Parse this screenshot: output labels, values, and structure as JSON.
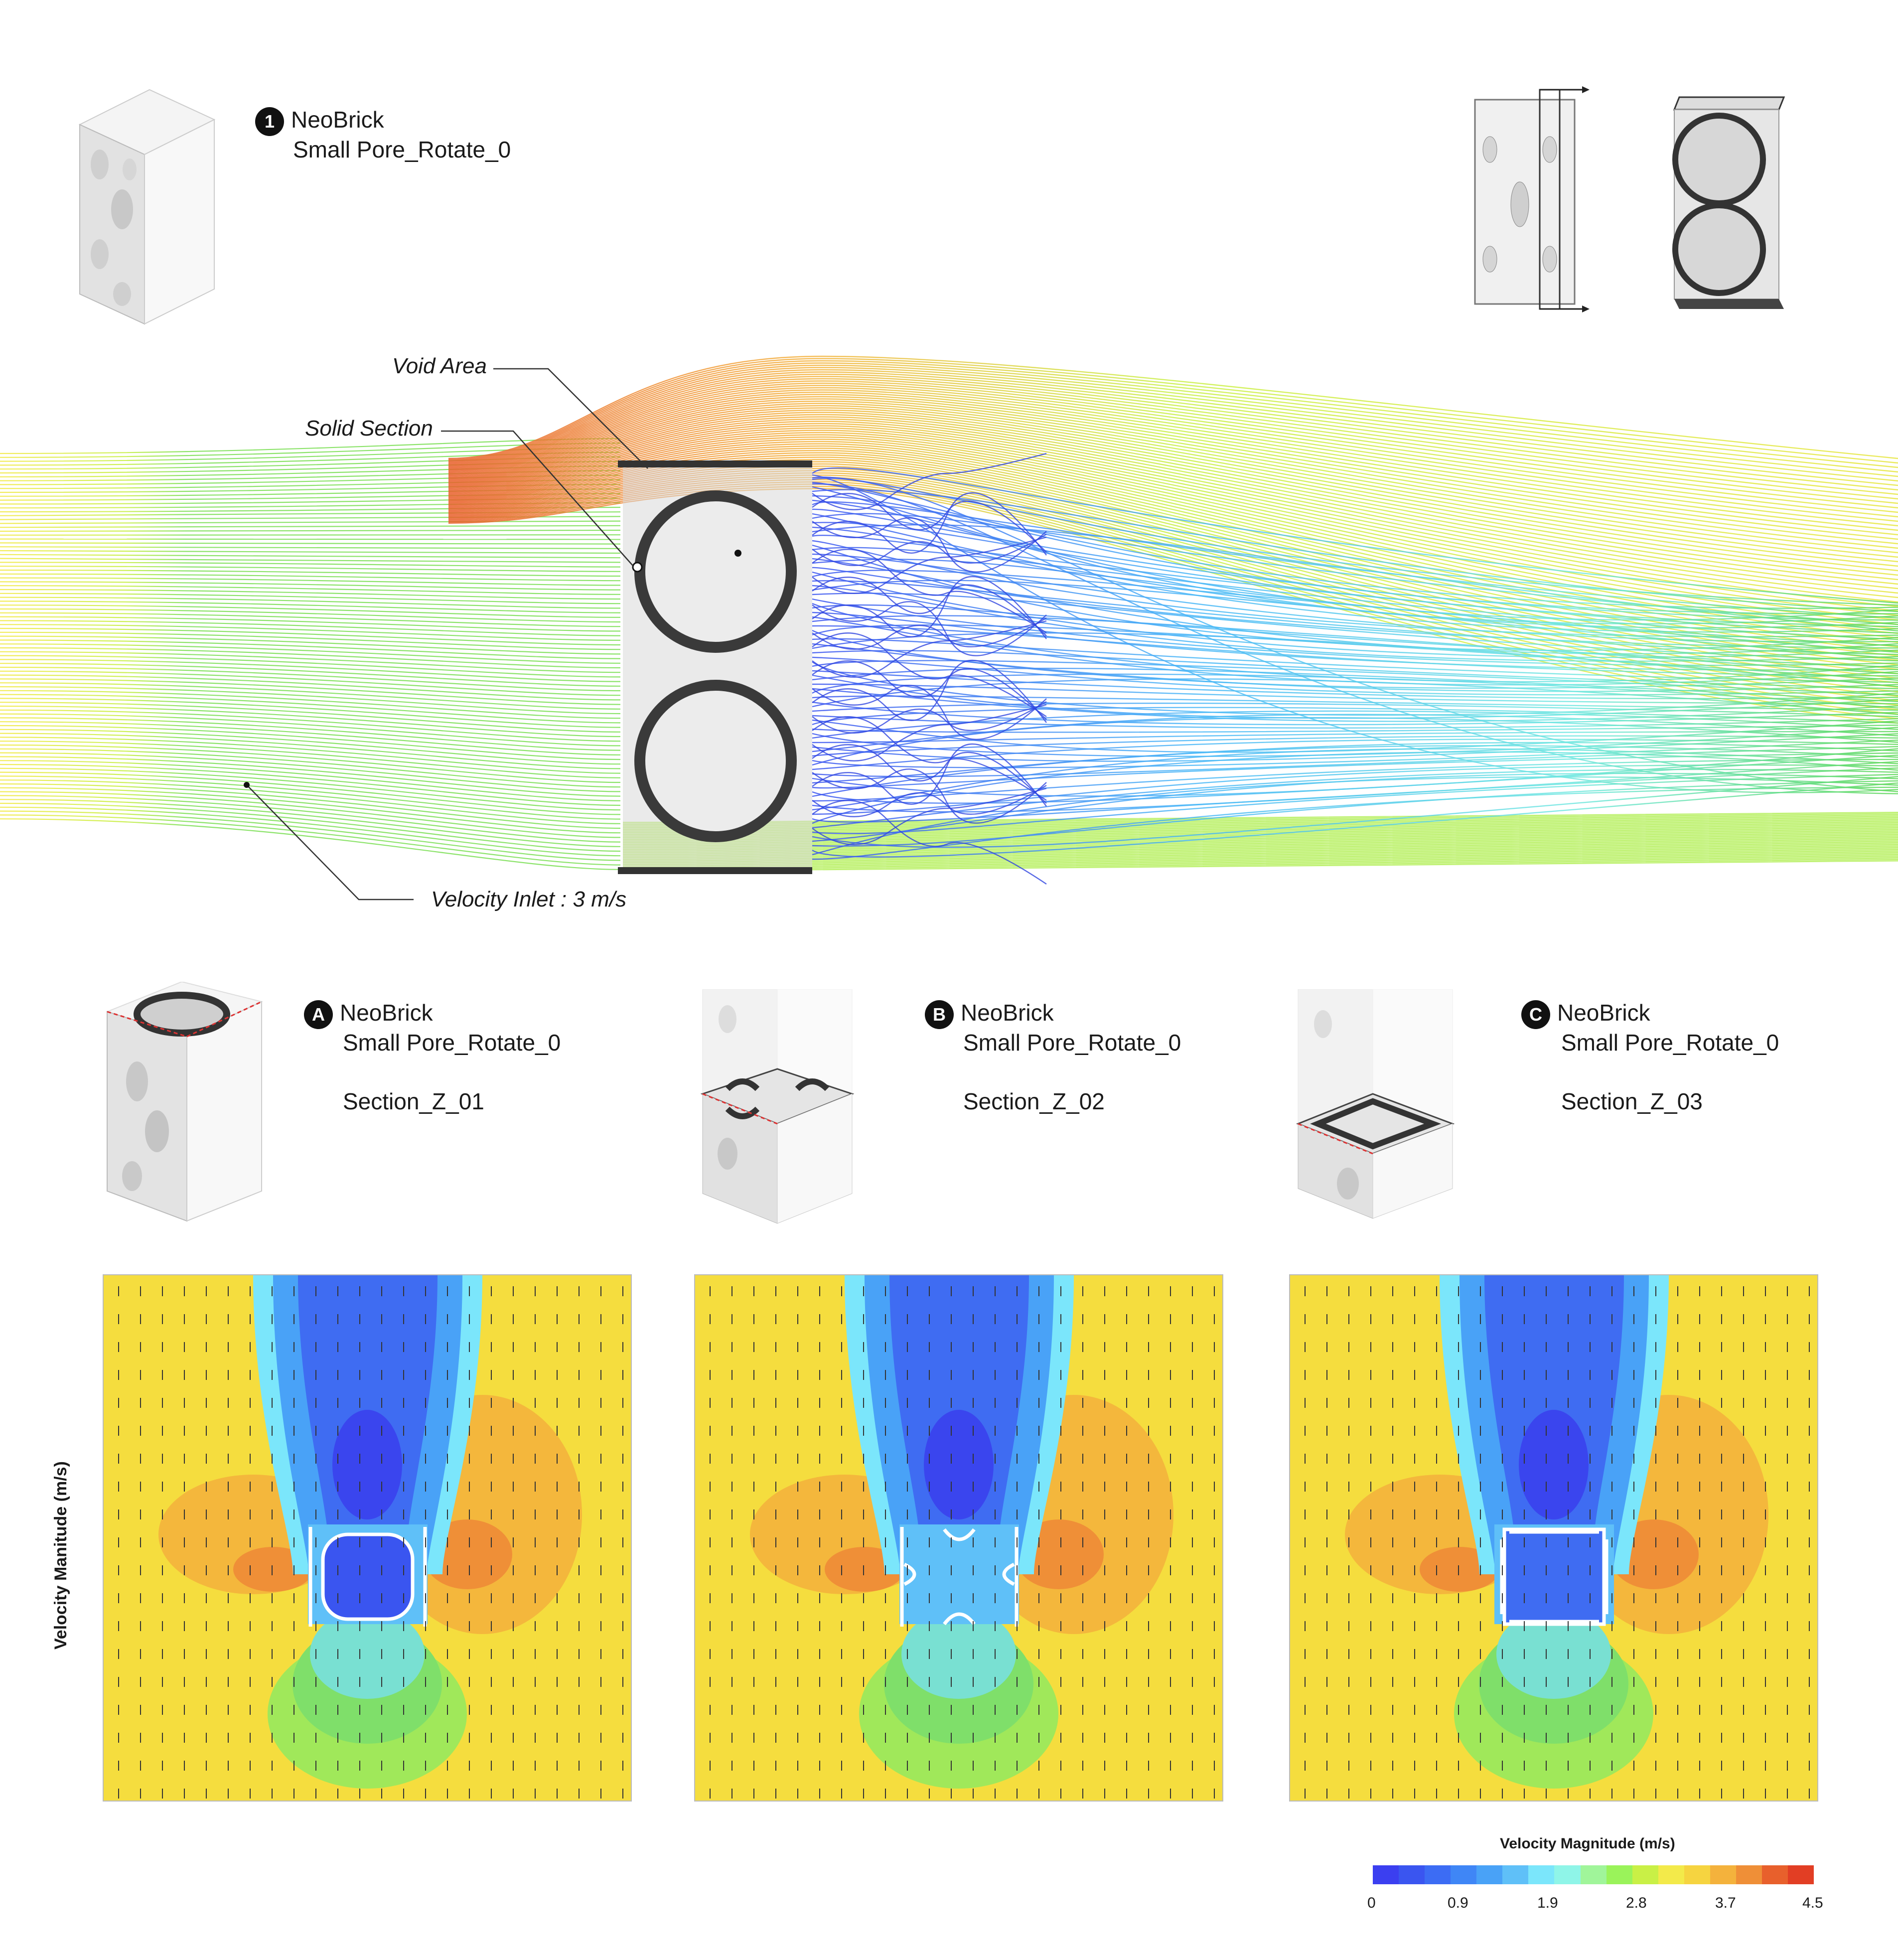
{
  "main": {
    "badge": "1",
    "name": "NeoBrick",
    "sub": "Small Pore_Rotate_0"
  },
  "callouts": {
    "void": "Void Area",
    "solid": "Solid Section",
    "inlet": "Velocity Inlet : 3 m/s"
  },
  "sections": [
    {
      "badge": "A",
      "name": "NeoBrick",
      "sub": "Small Pore_Rotate_0",
      "section": "Section_Z_01"
    },
    {
      "badge": "B",
      "name": "NeoBrick",
      "sub": "Small Pore_Rotate_0",
      "section": "Section_Z_02"
    },
    {
      "badge": "C",
      "name": "NeoBrick",
      "sub": "Small Pore_Rotate_0",
      "section": "Section_Z_03"
    }
  ],
  "side_label": "Velocity Manitude (m/s)",
  "legend": {
    "title": "Velocity Magnitude (m/s)",
    "ticks": [
      "0",
      "0.9",
      "1.9",
      "2.8",
      "3.7",
      "4.5"
    ],
    "colors": [
      "#3b3ff0",
      "#3a55f0",
      "#3c6cf4",
      "#3f86f6",
      "#49a2f7",
      "#5fc0f8",
      "#7be6fb",
      "#8ff5e8",
      "#a0f59a",
      "#9af35a",
      "#c9f046",
      "#f3ea4a",
      "#f6d440",
      "#f4b23c",
      "#ef8f37",
      "#e8602c",
      "#e23e24"
    ]
  },
  "colors": {
    "accent": "#f7e341",
    "wake": "#3b55f0",
    "hot": "#e8602c"
  }
}
